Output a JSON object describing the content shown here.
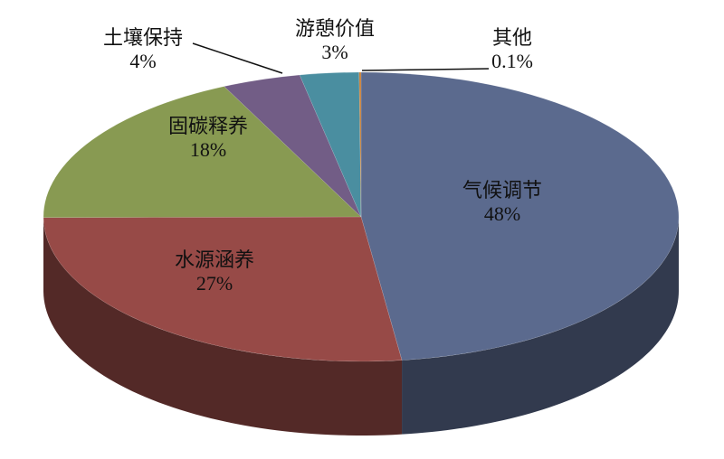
{
  "chart_data": {
    "type": "pie3d",
    "categories": [
      "气候调节",
      "水源涵养",
      "固碳释养",
      "土壤保持",
      "游憩价值",
      "其他"
    ],
    "values": [
      48,
      27,
      18,
      4,
      3,
      0.1
    ],
    "value_labels": [
      "48%",
      "27%",
      "18%",
      "4%",
      "3%",
      "0.1%"
    ],
    "colors": [
      "#5b6a8e",
      "#974a47",
      "#889a52",
      "#725d86",
      "#4a8ea0",
      "#c8803a"
    ]
  }
}
